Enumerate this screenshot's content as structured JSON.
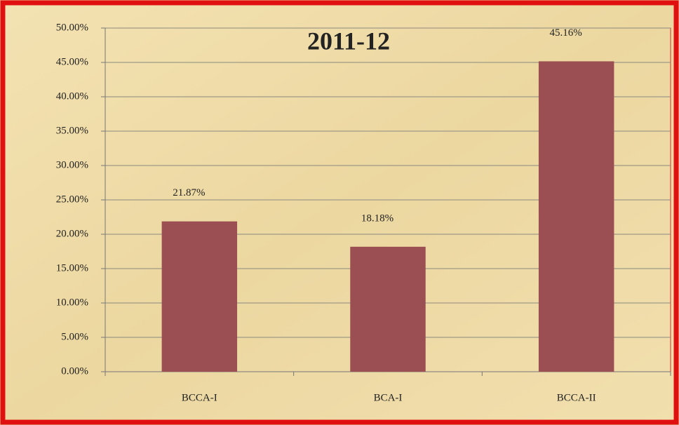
{
  "chart_data": {
    "type": "bar",
    "title": "2011-12",
    "categories": [
      "BCCA-I",
      "BCA-I",
      "BCCA-II"
    ],
    "values": [
      21.87,
      18.18,
      45.16
    ],
    "value_labels": [
      "21.87%",
      "18.18%",
      "45.16%"
    ],
    "color": "#9b4f52",
    "ylim": [
      0,
      50
    ],
    "yticks": [
      {
        "value": 0,
        "label": "0.00%"
      },
      {
        "value": 5,
        "label": "5.00%"
      },
      {
        "value": 10,
        "label": "10.00%"
      },
      {
        "value": 15,
        "label": "15.00%"
      },
      {
        "value": 20,
        "label": "20.00%"
      },
      {
        "value": 25,
        "label": "25.00%"
      },
      {
        "value": 30,
        "label": "30.00%"
      },
      {
        "value": 35,
        "label": "35.00%"
      },
      {
        "value": 40,
        "label": "40.00%"
      },
      {
        "value": 45,
        "label": "45.00%"
      },
      {
        "value": 50,
        "label": "50.00%"
      }
    ],
    "grid": true
  }
}
